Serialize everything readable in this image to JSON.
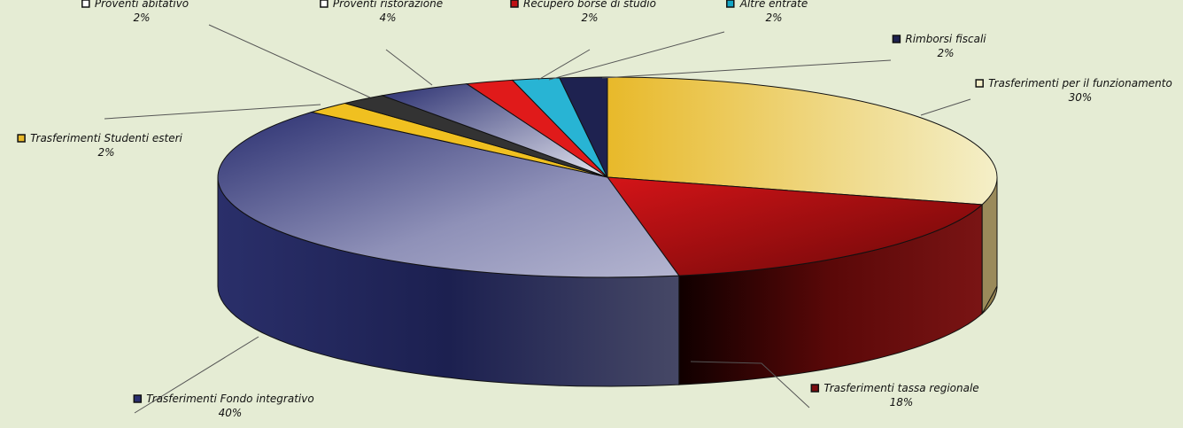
{
  "chart_data": {
    "type": "pie",
    "style": "3d-exploded",
    "title": "",
    "slices": [
      {
        "name": "Trasferimenti per il funzionamento",
        "label": "30%",
        "value": 30,
        "color": "#e8b92a",
        "color_light": "#f2eab8",
        "color_dark": "#8a7a3a"
      },
      {
        "name": "Trasferimenti  tassa regionale",
        "label": "18%",
        "value": 18,
        "color": "#d01418",
        "color_light": "#e01a1a",
        "color_dark": "#5a0a0a"
      },
      {
        "name": "Trasferimenti Fondo integrativo",
        "label": "40%",
        "value": 40,
        "color": "#2a2f70",
        "color_light": "#a7a8c8",
        "color_dark": "#1e2250"
      },
      {
        "name": "Trasferimenti  Studenti esteri",
        "label": "2%",
        "value": 2,
        "color": "#f0c020",
        "color_light": "#f0c020",
        "color_dark": "#a07a10"
      },
      {
        "name": "Proventi abitativo",
        "label": "2%",
        "value": 2,
        "color": "#222222",
        "color_light": "#333333",
        "color_dark": "#111111"
      },
      {
        "name": "Proventi  ristorazione",
        "label": "4%",
        "value": 4,
        "color": "#2a2f70",
        "color_light": "#c9cade",
        "color_dark": "#1e2250"
      },
      {
        "name": "Recupero borse di studio",
        "label": "2%",
        "value": 2,
        "color": "#d01418",
        "color_light": "#e01a1a",
        "color_dark": "#6a0a0a"
      },
      {
        "name": "Altre entrate",
        "label": "2%",
        "value": 2,
        "color": "#14a6c6",
        "color_light": "#28b4d4",
        "color_dark": "#0a6a80"
      },
      {
        "name": "Rimborsi fiscali",
        "label": "2%",
        "value": 2,
        "color": "#1e2250",
        "color_light": "#1e2250",
        "color_dark": "#10122e"
      }
    ]
  }
}
